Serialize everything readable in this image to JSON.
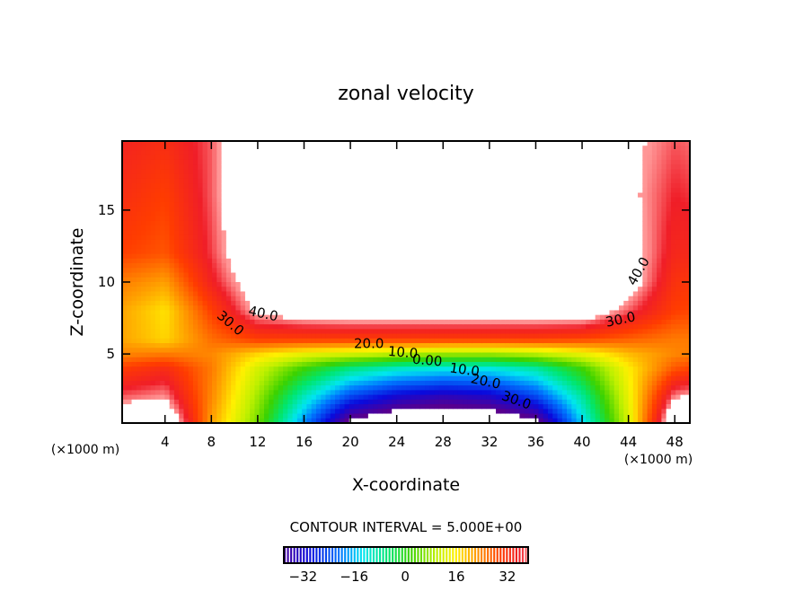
{
  "chart_data": {
    "type": "heatmap",
    "subtype": "filled-contour",
    "title": "zonal velocity",
    "xlabel": "X-coordinate",
    "ylabel": "Z-coordinate",
    "x_unit_label": "(×1000 m)",
    "xlim": [
      0.3,
      49.3
    ],
    "ylim": [
      0.2,
      19.8
    ],
    "xticks": [
      4,
      8,
      12,
      16,
      20,
      24,
      28,
      32,
      36,
      40,
      44,
      48
    ],
    "yticks": [
      5,
      10,
      15
    ],
    "contour_interval_label": "CONTOUR INTERVAL = 5.000E+00",
    "colorbar": {
      "range": [
        -38,
        38.5
      ],
      "ticks": [
        -32,
        -16,
        0,
        16,
        32
      ],
      "tick_labels": [
        "−32",
        "−16",
        "0",
        "16",
        "32"
      ]
    },
    "grid": {
      "x": [
        0,
        4,
        8,
        12,
        16,
        20,
        24,
        28,
        32,
        36,
        40,
        44,
        48,
        50
      ],
      "z": [
        20,
        16,
        12,
        10,
        8,
        6,
        5,
        4,
        2,
        0
      ],
      "values": [
        [
          35,
          33,
          38,
          50,
          50,
          50,
          50,
          50,
          50,
          50,
          50,
          42,
          38,
          39
        ],
        [
          33,
          30,
          38,
          50,
          50,
          50,
          50,
          50,
          50,
          50,
          50,
          42,
          36,
          37
        ],
        [
          30,
          28,
          37,
          48,
          50,
          50,
          50,
          50,
          50,
          50,
          50,
          44,
          34,
          34
        ],
        [
          25,
          22,
          35,
          45,
          50,
          50,
          50,
          50,
          50,
          50,
          50,
          44,
          32,
          31
        ],
        [
          22,
          17,
          30,
          42,
          45,
          46,
          46,
          46,
          46,
          46,
          46,
          38,
          30,
          29
        ],
        [
          22,
          18,
          26,
          30,
          30,
          30,
          30,
          30,
          30,
          30,
          29,
          27,
          25,
          25
        ],
        [
          24,
          25,
          24,
          18,
          14,
          12,
          10,
          8,
          8,
          10,
          14,
          20,
          24,
          25
        ],
        [
          30,
          33,
          25,
          12,
          2,
          -6,
          -10,
          -12,
          -12,
          -8,
          2,
          16,
          28,
          30
        ],
        [
          38,
          40,
          24,
          8,
          -10,
          -25,
          -32,
          -35,
          -33,
          -25,
          -8,
          14,
          40,
          42
        ],
        [
          50,
          50,
          22,
          5,
          -20,
          -45,
          -50,
          -50,
          -50,
          -45,
          -15,
          12,
          50,
          50
        ]
      ]
    },
    "contour_labels": [
      {
        "text": "40.0",
        "x": 12.4,
        "z": 7.5,
        "angle": 12
      },
      {
        "text": "30.0",
        "x": 9.4,
        "z": 6.9,
        "angle": 40
      },
      {
        "text": "40.0",
        "x": 45.2,
        "z": 10.6,
        "angle": -60
      },
      {
        "text": "30.0",
        "x": 43.4,
        "z": 7.1,
        "angle": -12
      },
      {
        "text": "20.0",
        "x": 21.6,
        "z": 5.4,
        "angle": 0
      },
      {
        "text": "10.0",
        "x": 24.5,
        "z": 4.8,
        "angle": 5
      },
      {
        "text": "0.00",
        "x": 26.6,
        "z": 4.25,
        "angle": 5
      },
      {
        "text": "10.0",
        "x": 29.8,
        "z": 3.6,
        "angle": 8
      },
      {
        "text": "20.0",
        "x": 31.6,
        "z": 2.8,
        "angle": 12
      },
      {
        "text": "30.0",
        "x": 34.2,
        "z": 1.5,
        "angle": 20
      }
    ]
  }
}
